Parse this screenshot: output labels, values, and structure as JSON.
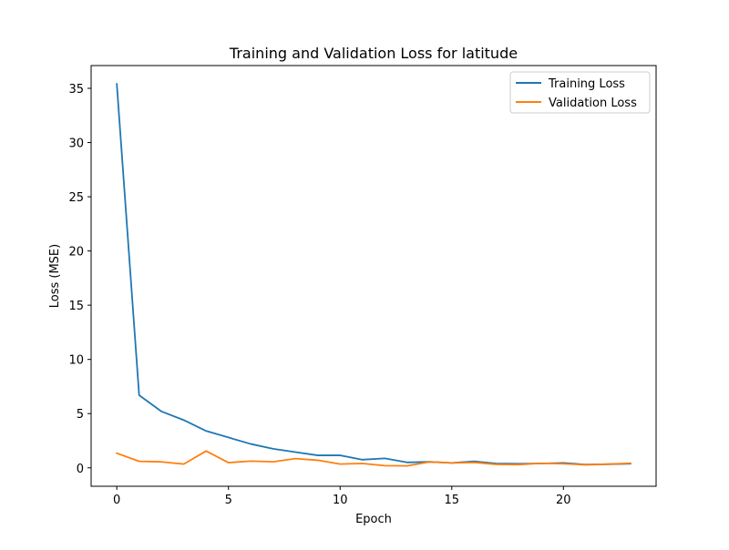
{
  "chart_data": {
    "type": "line",
    "title": "Training and Validation Loss for latitude",
    "xlabel": "Epoch",
    "ylabel": "Loss (MSE)",
    "xlim": [
      -1.15,
      24.15
    ],
    "ylim": [
      -1.7,
      37.1
    ],
    "xticks": [
      0,
      5,
      10,
      15,
      20
    ],
    "yticks": [
      0,
      5,
      10,
      15,
      20,
      25,
      30,
      35
    ],
    "grid": false,
    "legend_position": "top-right",
    "x": [
      0,
      1,
      2,
      3,
      4,
      5,
      6,
      7,
      8,
      9,
      10,
      11,
      12,
      13,
      14,
      15,
      16,
      17,
      18,
      19,
      20,
      21,
      22,
      23
    ],
    "series": [
      {
        "name": "Training Loss",
        "color": "#1f77b4",
        "values": [
          35.4,
          6.7,
          5.2,
          4.4,
          3.4,
          2.8,
          2.2,
          1.75,
          1.45,
          1.15,
          1.15,
          0.75,
          0.87,
          0.5,
          0.55,
          0.45,
          0.6,
          0.4,
          0.38,
          0.4,
          0.45,
          0.3,
          0.33,
          0.38
        ]
      },
      {
        "name": "Validation Loss",
        "color": "#ff7f0e",
        "values": [
          1.35,
          0.6,
          0.55,
          0.35,
          1.55,
          0.48,
          0.62,
          0.56,
          0.85,
          0.7,
          0.35,
          0.4,
          0.2,
          0.18,
          0.55,
          0.45,
          0.5,
          0.32,
          0.3,
          0.42,
          0.38,
          0.28,
          0.34,
          0.42
        ]
      }
    ]
  }
}
